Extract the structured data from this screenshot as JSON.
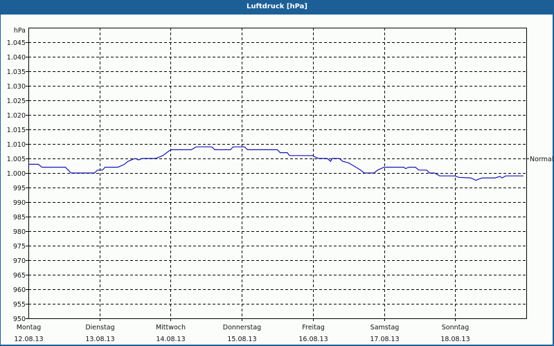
{
  "window": {
    "title": "Luftdruck [hPa]"
  },
  "colors": {
    "titlebar": "#1c5f96",
    "line": "#1414b4",
    "grid": "#000000",
    "background": "#fbfdfb"
  },
  "chart_data": {
    "type": "line",
    "title": "Luftdruck [hPa]",
    "ylabel": "hPa",
    "xlabel": "",
    "ylim": [
      950,
      1050
    ],
    "grid": true,
    "y_ticks": [
      "950",
      "955",
      "960",
      "965",
      "970",
      "975",
      "980",
      "985",
      "990",
      "995",
      "1.000",
      "1.005",
      "1.010",
      "1.015",
      "1.020",
      "1.025",
      "1.030",
      "1.035",
      "1.040",
      "1.045"
    ],
    "x_ticks": [
      {
        "day": "Montag",
        "date": "12.08.13"
      },
      {
        "day": "Dienstag",
        "date": "13.08.13"
      },
      {
        "day": "Mittwoch",
        "date": "14.08.13"
      },
      {
        "day": "Donnerstag",
        "date": "15.08.13"
      },
      {
        "day": "Freitag",
        "date": "16.08.13"
      },
      {
        "day": "Samstag",
        "date": "17.08.13"
      },
      {
        "day": "Sonntag",
        "date": "18.08.13"
      }
    ],
    "reference_line": {
      "label": "Normal",
      "value": 1005
    },
    "series": [
      {
        "name": "Luftdruck",
        "x_unit": "days since Montag 12.08.13",
        "x": [
          0,
          0.14,
          0.19,
          0.52,
          0.6,
          0.93,
          0.97,
          1.04,
          1.08,
          1.26,
          1.35,
          1.4,
          1.5,
          1.55,
          1.6,
          1.79,
          1.89,
          2.0,
          2.29,
          2.36,
          2.58,
          2.62,
          2.84,
          2.88,
          3.04,
          3.08,
          3.5,
          3.54,
          3.64,
          3.67,
          3.99,
          4.08,
          4.2,
          4.25,
          4.27,
          4.37,
          4.42,
          4.5,
          4.57,
          4.67,
          4.72,
          4.86,
          4.91,
          5.0,
          5.05,
          5.28,
          5.3,
          5.35,
          5.44,
          5.49,
          5.6,
          5.64,
          5.71,
          5.78,
          6.0,
          6.05,
          6.22,
          6.29,
          6.38,
          6.56,
          6.63,
          6.66,
          6.71,
          6.96
        ],
        "values": [
          1003,
          1003,
          1002,
          1002,
          1000,
          1000,
          1001,
          1001,
          1002,
          1002,
          1003,
          1004,
          1005,
          1004.5,
          1005,
          1005,
          1006,
          1008,
          1008,
          1009,
          1009,
          1008,
          1008,
          1009,
          1009,
          1008,
          1008,
          1007,
          1007,
          1006,
          1006,
          1005,
          1005,
          1004,
          1005,
          1005,
          1004,
          1003.5,
          1002.5,
          1001,
          1000,
          1000,
          1001,
          1002,
          1002,
          1002,
          1001.5,
          1002,
          1002,
          1001,
          1001,
          1000,
          1000,
          999,
          999,
          998.5,
          998.3,
          997.5,
          998.3,
          998.3,
          998.8,
          998.3,
          999,
          999
        ]
      }
    ]
  }
}
